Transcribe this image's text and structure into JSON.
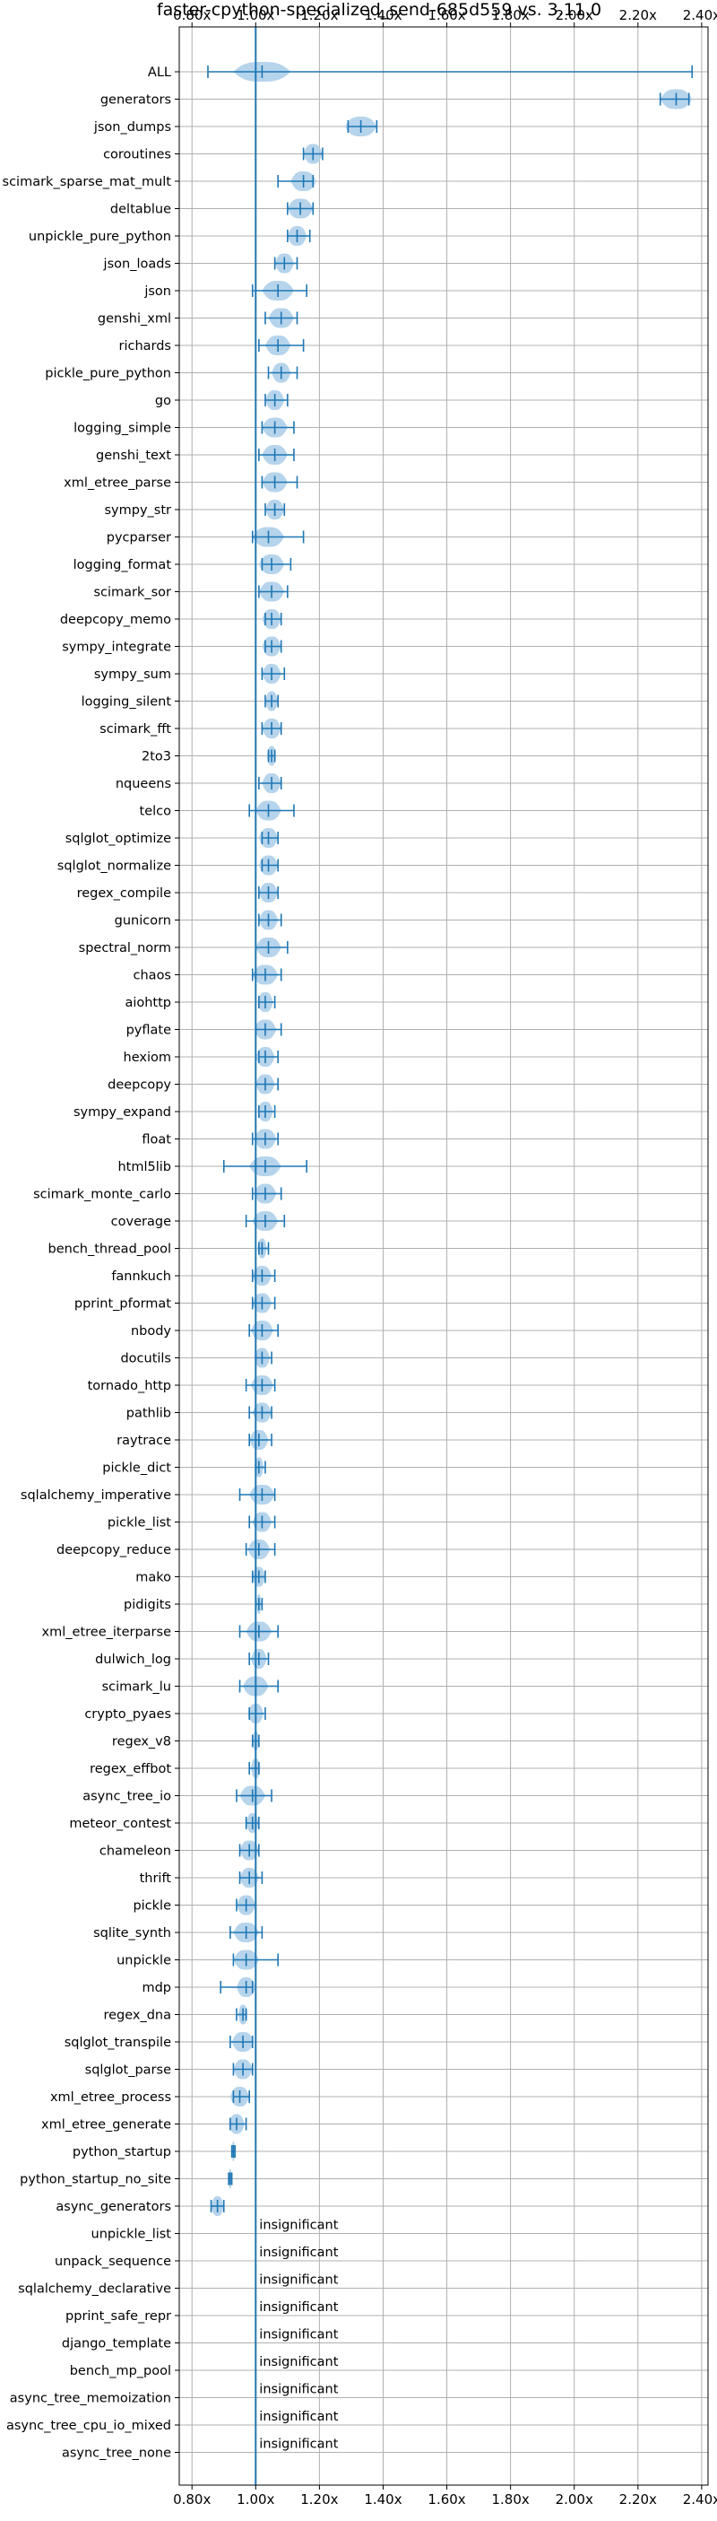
{
  "chart_data": {
    "type": "violin",
    "title": "faster-cpython-specialized_send-685d559 vs. 3.11.0",
    "xlim": [
      0.76,
      2.42
    ],
    "xticks": [
      "0.80x",
      "1.00x",
      "1.20x",
      "1.40x",
      "1.60x",
      "1.80x",
      "2.00x",
      "2.20x",
      "2.40x"
    ],
    "xtick_values": [
      0.8,
      1.0,
      1.2,
      1.4,
      1.6,
      1.8,
      2.0,
      2.2,
      2.4
    ],
    "reference_line": 1.0,
    "grid": true,
    "colors": {
      "violin": "#a9cce8",
      "line": "#1f77b4",
      "grid": "#b0b0b0"
    },
    "benchmarks": [
      {
        "name": "ALL",
        "min": 0.85,
        "max": 2.37,
        "center": 1.02,
        "width": 0.09
      },
      {
        "name": "generators",
        "min": 2.27,
        "max": 2.36,
        "center": 2.32,
        "width": 0.05
      },
      {
        "name": "json_dumps",
        "min": 1.29,
        "max": 1.38,
        "center": 1.33,
        "width": 0.05
      },
      {
        "name": "coroutines",
        "min": 1.15,
        "max": 1.21,
        "center": 1.18,
        "width": 0.03
      },
      {
        "name": "scimark_sparse_mat_mult",
        "min": 1.07,
        "max": 1.18,
        "center": 1.15,
        "width": 0.04
      },
      {
        "name": "deltablue",
        "min": 1.1,
        "max": 1.18,
        "center": 1.14,
        "width": 0.04
      },
      {
        "name": "unpickle_pure_python",
        "min": 1.1,
        "max": 1.17,
        "center": 1.13,
        "width": 0.03
      },
      {
        "name": "json_loads",
        "min": 1.06,
        "max": 1.13,
        "center": 1.09,
        "width": 0.03
      },
      {
        "name": "json",
        "min": 0.99,
        "max": 1.16,
        "center": 1.07,
        "width": 0.05
      },
      {
        "name": "genshi_xml",
        "min": 1.03,
        "max": 1.13,
        "center": 1.08,
        "width": 0.04
      },
      {
        "name": "richards",
        "min": 1.01,
        "max": 1.15,
        "center": 1.07,
        "width": 0.04
      },
      {
        "name": "pickle_pure_python",
        "min": 1.04,
        "max": 1.13,
        "center": 1.08,
        "width": 0.03
      },
      {
        "name": "go",
        "min": 1.03,
        "max": 1.1,
        "center": 1.06,
        "width": 0.03
      },
      {
        "name": "logging_simple",
        "min": 1.02,
        "max": 1.12,
        "center": 1.06,
        "width": 0.04
      },
      {
        "name": "genshi_text",
        "min": 1.01,
        "max": 1.12,
        "center": 1.06,
        "width": 0.04
      },
      {
        "name": "xml_etree_parse",
        "min": 1.02,
        "max": 1.13,
        "center": 1.06,
        "width": 0.04
      },
      {
        "name": "sympy_str",
        "min": 1.03,
        "max": 1.09,
        "center": 1.06,
        "width": 0.03
      },
      {
        "name": "pycparser",
        "min": 0.99,
        "max": 1.15,
        "center": 1.04,
        "width": 0.05
      },
      {
        "name": "logging_format",
        "min": 1.02,
        "max": 1.11,
        "center": 1.05,
        "width": 0.04
      },
      {
        "name": "scimark_sor",
        "min": 1.01,
        "max": 1.1,
        "center": 1.05,
        "width": 0.04
      },
      {
        "name": "deepcopy_memo",
        "min": 1.03,
        "max": 1.08,
        "center": 1.05,
        "width": 0.03
      },
      {
        "name": "sympy_integrate",
        "min": 1.03,
        "max": 1.08,
        "center": 1.05,
        "width": 0.03
      },
      {
        "name": "sympy_sum",
        "min": 1.02,
        "max": 1.09,
        "center": 1.05,
        "width": 0.03
      },
      {
        "name": "logging_silent",
        "min": 1.03,
        "max": 1.07,
        "center": 1.05,
        "width": 0.02
      },
      {
        "name": "scimark_fft",
        "min": 1.02,
        "max": 1.08,
        "center": 1.05,
        "width": 0.03
      },
      {
        "name": "2to3",
        "min": 1.04,
        "max": 1.06,
        "center": 1.05,
        "width": 0.015
      },
      {
        "name": "nqueens",
        "min": 1.01,
        "max": 1.08,
        "center": 1.05,
        "width": 0.03
      },
      {
        "name": "telco",
        "min": 0.98,
        "max": 1.12,
        "center": 1.04,
        "width": 0.04
      },
      {
        "name": "sqlglot_optimize",
        "min": 1.02,
        "max": 1.07,
        "center": 1.04,
        "width": 0.03
      },
      {
        "name": "sqlglot_normalize",
        "min": 1.02,
        "max": 1.07,
        "center": 1.04,
        "width": 0.03
      },
      {
        "name": "regex_compile",
        "min": 1.01,
        "max": 1.07,
        "center": 1.04,
        "width": 0.03
      },
      {
        "name": "gunicorn",
        "min": 1.01,
        "max": 1.08,
        "center": 1.04,
        "width": 0.03
      },
      {
        "name": "spectral_norm",
        "min": 1.0,
        "max": 1.1,
        "center": 1.04,
        "width": 0.04
      },
      {
        "name": "chaos",
        "min": 0.99,
        "max": 1.08,
        "center": 1.03,
        "width": 0.04
      },
      {
        "name": "aiohttp",
        "min": 1.01,
        "max": 1.06,
        "center": 1.03,
        "width": 0.025
      },
      {
        "name": "pyflate",
        "min": 1.0,
        "max": 1.08,
        "center": 1.03,
        "width": 0.035
      },
      {
        "name": "hexiom",
        "min": 1.01,
        "max": 1.07,
        "center": 1.03,
        "width": 0.03
      },
      {
        "name": "deepcopy",
        "min": 1.0,
        "max": 1.07,
        "center": 1.03,
        "width": 0.03
      },
      {
        "name": "sympy_expand",
        "min": 1.01,
        "max": 1.06,
        "center": 1.03,
        "width": 0.025
      },
      {
        "name": "float",
        "min": 0.99,
        "max": 1.07,
        "center": 1.03,
        "width": 0.035
      },
      {
        "name": "html5lib",
        "min": 0.9,
        "max": 1.16,
        "center": 1.03,
        "width": 0.05
      },
      {
        "name": "scimark_monte_carlo",
        "min": 0.99,
        "max": 1.08,
        "center": 1.03,
        "width": 0.035
      },
      {
        "name": "coverage",
        "min": 0.97,
        "max": 1.09,
        "center": 1.03,
        "width": 0.04
      },
      {
        "name": "bench_thread_pool",
        "min": 1.01,
        "max": 1.04,
        "center": 1.02,
        "width": 0.015
      },
      {
        "name": "fannkuch",
        "min": 0.99,
        "max": 1.06,
        "center": 1.02,
        "width": 0.03
      },
      {
        "name": "pprint_pformat",
        "min": 0.99,
        "max": 1.06,
        "center": 1.02,
        "width": 0.03
      },
      {
        "name": "nbody",
        "min": 0.98,
        "max": 1.07,
        "center": 1.02,
        "width": 0.035
      },
      {
        "name": "docutils",
        "min": 1.0,
        "max": 1.05,
        "center": 1.02,
        "width": 0.025
      },
      {
        "name": "tornado_http",
        "min": 0.97,
        "max": 1.06,
        "center": 1.02,
        "width": 0.035
      },
      {
        "name": "pathlib",
        "min": 0.98,
        "max": 1.05,
        "center": 1.02,
        "width": 0.03
      },
      {
        "name": "raytrace",
        "min": 0.98,
        "max": 1.05,
        "center": 1.01,
        "width": 0.03
      },
      {
        "name": "pickle_dict",
        "min": 1.0,
        "max": 1.03,
        "center": 1.01,
        "width": 0.015
      },
      {
        "name": "sqlalchemy_imperative",
        "min": 0.95,
        "max": 1.06,
        "center": 1.02,
        "width": 0.04
      },
      {
        "name": "pickle_list",
        "min": 0.98,
        "max": 1.06,
        "center": 1.02,
        "width": 0.03
      },
      {
        "name": "deepcopy_reduce",
        "min": 0.97,
        "max": 1.06,
        "center": 1.01,
        "width": 0.035
      },
      {
        "name": "mako",
        "min": 0.99,
        "max": 1.03,
        "center": 1.01,
        "width": 0.02
      },
      {
        "name": "pidigits",
        "min": 1.0,
        "max": 1.02,
        "center": 1.01,
        "width": 0.008
      },
      {
        "name": "xml_etree_iterparse",
        "min": 0.95,
        "max": 1.07,
        "center": 1.01,
        "width": 0.04
      },
      {
        "name": "dulwich_log",
        "min": 0.98,
        "max": 1.04,
        "center": 1.01,
        "width": 0.025
      },
      {
        "name": "scimark_lu",
        "min": 0.95,
        "max": 1.07,
        "center": 1.0,
        "width": 0.04
      },
      {
        "name": "crypto_pyaes",
        "min": 0.98,
        "max": 1.03,
        "center": 1.0,
        "width": 0.025
      },
      {
        "name": "regex_v8",
        "min": 0.99,
        "max": 1.01,
        "center": 1.0,
        "width": 0.01
      },
      {
        "name": "regex_effbot",
        "min": 0.98,
        "max": 1.01,
        "center": 1.0,
        "width": 0.015
      },
      {
        "name": "async_tree_io",
        "min": 0.94,
        "max": 1.05,
        "center": 0.99,
        "width": 0.04
      },
      {
        "name": "meteor_contest",
        "min": 0.97,
        "max": 1.01,
        "center": 0.99,
        "width": 0.02
      },
      {
        "name": "chameleon",
        "min": 0.95,
        "max": 1.01,
        "center": 0.98,
        "width": 0.03
      },
      {
        "name": "thrift",
        "min": 0.95,
        "max": 1.02,
        "center": 0.98,
        "width": 0.03
      },
      {
        "name": "pickle",
        "min": 0.94,
        "max": 1.0,
        "center": 0.97,
        "width": 0.03
      },
      {
        "name": "sqlite_synth",
        "min": 0.92,
        "max": 1.02,
        "center": 0.97,
        "width": 0.04
      },
      {
        "name": "unpickle",
        "min": 0.93,
        "max": 1.07,
        "center": 0.97,
        "width": 0.04
      },
      {
        "name": "mdp",
        "min": 0.89,
        "max": 0.99,
        "center": 0.97,
        "width": 0.03
      },
      {
        "name": "regex_dna",
        "min": 0.94,
        "max": 0.97,
        "center": 0.96,
        "width": 0.015
      },
      {
        "name": "sqlglot_transpile",
        "min": 0.92,
        "max": 0.99,
        "center": 0.96,
        "width": 0.035
      },
      {
        "name": "sqlglot_parse",
        "min": 0.93,
        "max": 0.99,
        "center": 0.96,
        "width": 0.03
      },
      {
        "name": "xml_etree_process",
        "min": 0.93,
        "max": 0.98,
        "center": 0.95,
        "width": 0.03
      },
      {
        "name": "xml_etree_generate",
        "min": 0.92,
        "max": 0.97,
        "center": 0.94,
        "width": 0.025
      },
      {
        "name": "python_startup",
        "min": 0.925,
        "max": 0.935,
        "center": 0.93,
        "width": 0.005
      },
      {
        "name": "python_startup_no_site",
        "min": 0.915,
        "max": 0.925,
        "center": 0.92,
        "width": 0.005
      },
      {
        "name": "async_generators",
        "min": 0.86,
        "max": 0.9,
        "center": 0.88,
        "width": 0.02
      },
      {
        "name": "unpickle_list",
        "label": "insignificant"
      },
      {
        "name": "unpack_sequence",
        "label": "insignificant"
      },
      {
        "name": "sqlalchemy_declarative",
        "label": "insignificant"
      },
      {
        "name": "pprint_safe_repr",
        "label": "insignificant"
      },
      {
        "name": "django_template",
        "label": "insignificant"
      },
      {
        "name": "bench_mp_pool",
        "label": "insignificant"
      },
      {
        "name": "async_tree_memoization",
        "label": "insignificant"
      },
      {
        "name": "async_tree_cpu_io_mixed",
        "label": "insignificant"
      },
      {
        "name": "async_tree_none",
        "label": "insignificant"
      }
    ]
  }
}
